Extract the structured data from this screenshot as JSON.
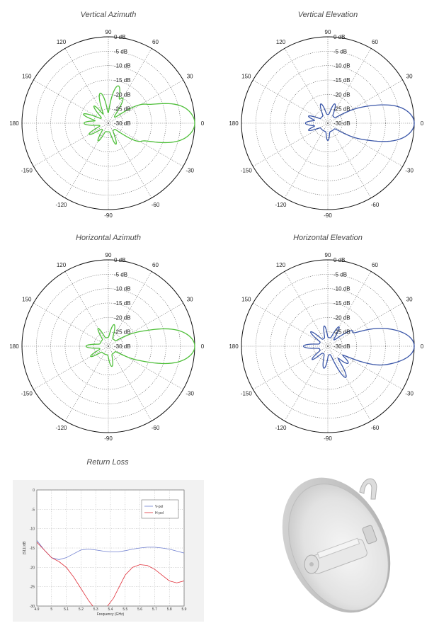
{
  "chart_data": [
    {
      "type": "polar",
      "title": "Vertical Azimuth",
      "color": "#4fbf3a",
      "rings_db": [
        "0 dB",
        "-5 dB",
        "-10 dB",
        "-15 dB",
        "-20 dB",
        "-25 dB",
        "-30 dB"
      ],
      "angle_labels": [
        "0",
        "30",
        "60",
        "90",
        "120",
        "150",
        "180",
        "-150",
        "-120",
        "-90",
        "-60",
        "-30"
      ],
      "pattern": "vaz"
    },
    {
      "type": "polar",
      "title": "Vertical Elevation",
      "color": "#3a56a8",
      "rings_db": [
        "0 dB",
        "-5 dB",
        "-10 dB",
        "-15 dB",
        "-20 dB",
        "-25 dB",
        "-30 dB"
      ],
      "angle_labels": [
        "0",
        "30",
        "60",
        "90",
        "120",
        "150",
        "180",
        "-150",
        "-120",
        "-90",
        "-60",
        "-30"
      ],
      "pattern": "vel"
    },
    {
      "type": "polar",
      "title": "Horizontal Azimuth",
      "color": "#4fbf3a",
      "rings_db": [
        "0 dB",
        "-5 dB",
        "-10 dB",
        "-15 dB",
        "-20 dB",
        "-25 dB",
        "-30 dB"
      ],
      "angle_labels": [
        "0",
        "30",
        "60",
        "90",
        "120",
        "150",
        "180",
        "-150",
        "-120",
        "-90",
        "-60",
        "-30"
      ],
      "pattern": "haz"
    },
    {
      "type": "polar",
      "title": "Horizontal Elevation",
      "color": "#3a56a8",
      "rings_db": [
        "0 dB",
        "-5 dB",
        "-10 dB",
        "-15 dB",
        "-20 dB",
        "-25 dB",
        "-30 dB"
      ],
      "angle_labels": [
        "0",
        "30",
        "60",
        "90",
        "120",
        "150",
        "180",
        "-150",
        "-120",
        "-90",
        "-60",
        "-30"
      ],
      "pattern": "hel"
    },
    {
      "type": "line",
      "title": "Return Loss",
      "xlabel": "Frequency (GHz)",
      "ylabel": "|S11| dB",
      "xlim": [
        4.9,
        5.9
      ],
      "ylim": [
        -30,
        0
      ],
      "xticks": [
        "4.9",
        "5",
        "5.1",
        "5.2",
        "5.3",
        "5.4",
        "5.5",
        "5.6",
        "5.7",
        "5.8",
        "5.9"
      ],
      "yticks": [
        "0",
        "-5",
        "-10",
        "-15",
        "-20",
        "-25",
        "-30"
      ],
      "legend_position": "top-right",
      "series": [
        {
          "name": "V-pol",
          "color": "#6f7fd0",
          "x": [
            4.9,
            4.95,
            5.0,
            5.05,
            5.1,
            5.15,
            5.2,
            5.25,
            5.3,
            5.35,
            5.4,
            5.45,
            5.5,
            5.55,
            5.6,
            5.65,
            5.7,
            5.75,
            5.8,
            5.85,
            5.9
          ],
          "y": [
            -13,
            -15.5,
            -17.5,
            -18,
            -17.5,
            -16.5,
            -15.5,
            -15.3,
            -15.5,
            -15.8,
            -16,
            -16,
            -15.7,
            -15.3,
            -15,
            -14.8,
            -14.8,
            -15,
            -15.3,
            -15.8,
            -16.3
          ]
        },
        {
          "name": "H-pol",
          "color": "#e0303a",
          "x": [
            4.9,
            4.95,
            5.0,
            5.05,
            5.1,
            5.15,
            5.2,
            5.25,
            5.28,
            5.31,
            5.35,
            5.38,
            5.42,
            5.46,
            5.5,
            5.55,
            5.6,
            5.65,
            5.7,
            5.75,
            5.8,
            5.85,
            5.9
          ],
          "y": [
            -13.5,
            -15.5,
            -17.5,
            -18.5,
            -20,
            -22.5,
            -25.5,
            -28.5,
            -30,
            -31,
            -31,
            -30,
            -28,
            -25,
            -22,
            -20,
            -19.3,
            -19.5,
            -20.5,
            -22,
            -23.5,
            -24,
            -23.5
          ]
        }
      ]
    }
  ]
}
